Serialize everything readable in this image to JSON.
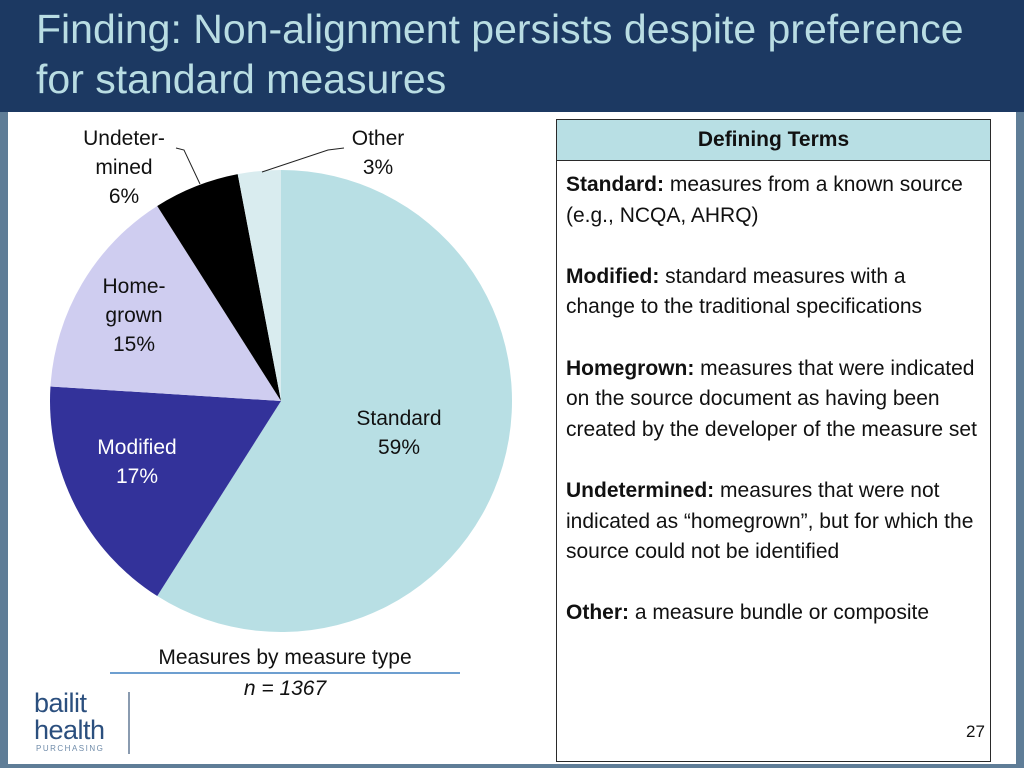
{
  "title": "Finding: Non-alignment persists despite preference for standard measures",
  "chart_data": {
    "type": "pie",
    "slices": [
      {
        "label": "Standard",
        "value": 59,
        "display": "59%",
        "color": "#b8dfe4"
      },
      {
        "label": "Modified",
        "value": 17,
        "display": "17%",
        "color": "#33329a"
      },
      {
        "label": "Home-grown",
        "value": 15,
        "display": "15%",
        "color": "#cfcdf0"
      },
      {
        "label": "Undeter-mined",
        "value": 6,
        "display": "6%",
        "color": "#000000"
      },
      {
        "label": "Other",
        "value": 3,
        "display": "3%",
        "color": "#d9ecef"
      }
    ],
    "labels": {
      "standard": [
        "Standard",
        "59%"
      ],
      "modified": [
        "Modified",
        "17%"
      ],
      "homegrown": [
        "Home-",
        "grown",
        "15%"
      ],
      "undetermined": [
        "Undeter-",
        "mined",
        "6%"
      ],
      "other": [
        "Other",
        "3%"
      ]
    }
  },
  "caption": "Measures by measure type",
  "n_label": "n = 1367",
  "terms": {
    "header": "Defining Terms",
    "items": [
      {
        "term": "Standard:",
        "text": " measures from a known source (e.g., NCQA, AHRQ)"
      },
      {
        "term": "Modified:",
        "text": " standard measures with a change to the traditional specifications"
      },
      {
        "term": "Homegrown:",
        "text": " measures that were indicated on the source document as having been created by the developer of the measure set"
      },
      {
        "term": "Undetermined:",
        "text": " measures that were not indicated as “homegrown”, but for which the source could not be identified"
      },
      {
        "term": "Other:",
        "text": " a measure bundle or composite"
      }
    ]
  },
  "logo": {
    "line1": "bailit",
    "line2": "health",
    "sub": "PURCHASING"
  },
  "page_number": "27"
}
